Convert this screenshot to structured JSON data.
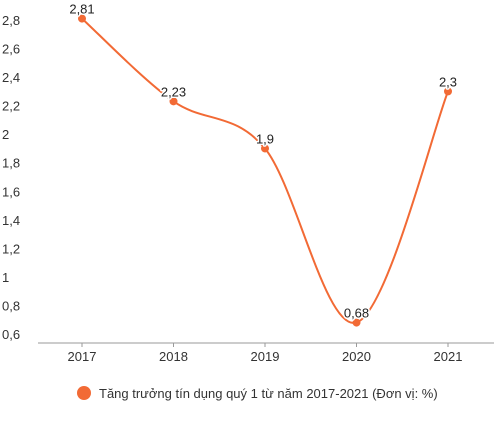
{
  "chart_data": {
    "type": "line",
    "title": "",
    "xlabel": "",
    "ylabel": "",
    "categories": [
      "2017",
      "2018",
      "2019",
      "2020",
      "2021"
    ],
    "series": [
      {
        "name": "Tăng trưởng tín dụng quý 1 từ năm 2017-2021 (Đơn vị: %)",
        "values": [
          2.81,
          2.23,
          1.9,
          0.68,
          2.3
        ],
        "data_labels": [
          "2,81",
          "2,23",
          "1,9",
          "0,68",
          "2,3"
        ],
        "color": "#f26a35"
      }
    ],
    "ylim": [
      0.6,
      2.8
    ],
    "yticks": [
      0.6,
      0.8,
      1,
      1.2,
      1.4,
      1.6,
      1.8,
      2,
      2.2,
      2.4,
      2.6,
      2.8
    ],
    "ytick_labels": [
      "0,6",
      "0,8",
      "1",
      "1,2",
      "1,4",
      "1,6",
      "1,8",
      "2",
      "2,2",
      "2,4",
      "2,6",
      "2,8"
    ],
    "grid": false,
    "legend": "bottom",
    "smooth": true
  }
}
